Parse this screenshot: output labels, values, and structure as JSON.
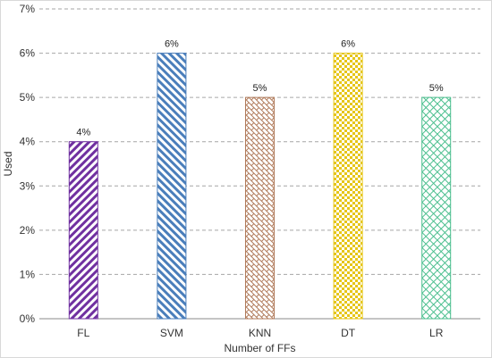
{
  "chart_data": {
    "type": "bar",
    "categories": [
      "FL",
      "SVM",
      "KNN",
      "DT",
      "LR"
    ],
    "values": [
      4,
      6,
      5,
      6,
      5
    ],
    "data_labels": [
      "4%",
      "6%",
      "5%",
      "6%",
      "5%"
    ],
    "y_ticks": [
      "0%",
      "1%",
      "2%",
      "3%",
      "4%",
      "5%",
      "6%",
      "7%"
    ],
    "ylim": [
      0,
      7
    ],
    "xlabel": "Number of FFs",
    "ylabel": "Used",
    "grid": "horizontal dashed",
    "bar_colors": [
      "#7030a0",
      "#4a7ebb",
      "#b07a5a",
      "#e6c619",
      "#4cbf8f"
    ],
    "bar_patterns": [
      "diagonal-stripes",
      "diagonal-stripes",
      "brick",
      "checker",
      "crosshatch"
    ]
  }
}
